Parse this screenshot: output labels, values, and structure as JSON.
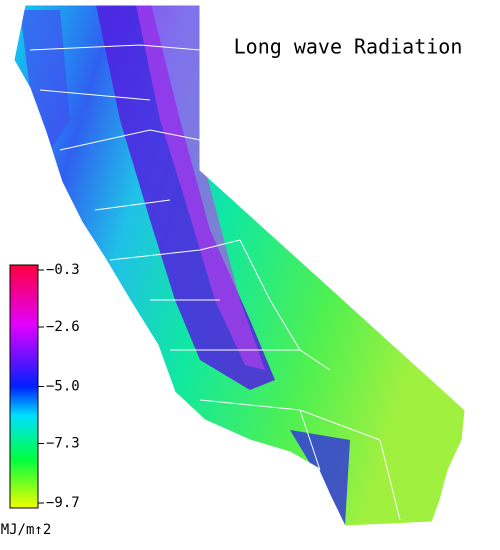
{
  "title": "Long wave Radiation",
  "colorbar": {
    "ticks": [
      {
        "value": -0.3,
        "label": "−0.3"
      },
      {
        "value": -2.6,
        "label": "−2.6"
      },
      {
        "value": -5.0,
        "label": "−5.0"
      },
      {
        "value": -7.3,
        "label": "−7.3"
      },
      {
        "value": -9.7,
        "label": "−9.7"
      }
    ],
    "unit": "MJ/m↑2"
  }
}
